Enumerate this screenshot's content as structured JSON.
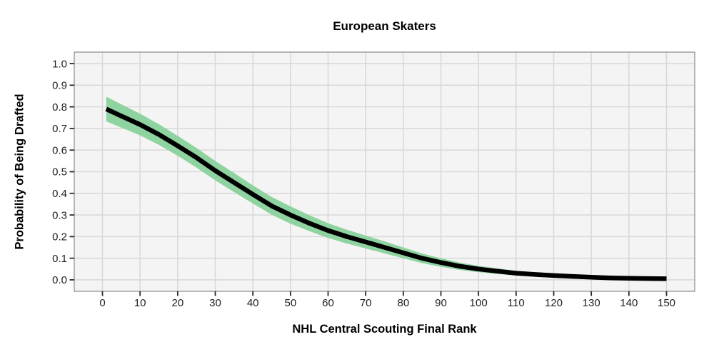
{
  "chart": {
    "title": "European Skaters",
    "xlabel": "NHL Central Scouting Final Rank",
    "ylabel": "Probability of Being Drafted"
  },
  "colors": {
    "background": "#ffffff",
    "panel_background": "#f4f4f4",
    "gridline": "#d9d9d9",
    "panel_border": "#919191",
    "tick_mark": "#2b2b2b",
    "tick_label": "#1f1f1f",
    "band_fill": "#8fd3a0",
    "line": "#000000",
    "title_text": "#000000"
  },
  "chart_data": {
    "type": "line",
    "title": "European Skaters",
    "xlabel": "NHL Central Scouting Final Rank",
    "ylabel": "Probability of Being Drafted",
    "xlim": [
      -7.5,
      157.5
    ],
    "ylim": [
      -0.053,
      1.053
    ],
    "grid": true,
    "legend": false,
    "x_ticks": {
      "values": [
        0,
        10,
        20,
        30,
        40,
        50,
        60,
        70,
        80,
        90,
        100,
        110,
        120,
        130,
        140,
        150
      ],
      "labels": [
        "0",
        "10",
        "20",
        "30",
        "40",
        "50",
        "60",
        "70",
        "80",
        "90",
        "100",
        "110",
        "120",
        "130",
        "140",
        "150"
      ]
    },
    "y_ticks": {
      "values": [
        0.0,
        0.1,
        0.2,
        0.3,
        0.4,
        0.5,
        0.6,
        0.7,
        0.8,
        0.9,
        1.0
      ],
      "labels": [
        "0.0",
        "0.1",
        "0.2",
        "0.3",
        "0.4",
        "0.5",
        "0.6",
        "0.7",
        "0.8",
        "0.9",
        "1.0"
      ]
    },
    "x": [
      1,
      5,
      10,
      15,
      20,
      25,
      30,
      35,
      40,
      45,
      50,
      55,
      60,
      65,
      70,
      75,
      80,
      85,
      90,
      95,
      100,
      105,
      110,
      115,
      120,
      125,
      130,
      135,
      140,
      145,
      150
    ],
    "series": [
      {
        "name": "fitted_probability",
        "type": "line",
        "color": "#000000",
        "values": [
          0.79,
          0.758,
          0.718,
          0.672,
          0.62,
          0.565,
          0.505,
          0.45,
          0.395,
          0.342,
          0.3,
          0.262,
          0.228,
          0.2,
          0.175,
          0.15,
          0.125,
          0.1,
          0.08,
          0.063,
          0.05,
          0.04,
          0.031,
          0.025,
          0.02,
          0.016,
          0.012,
          0.009,
          0.007,
          0.006,
          0.005
        ]
      },
      {
        "name": "confidence_band",
        "type": "area",
        "color": "#8fd3a0",
        "upper": [
          0.847,
          0.812,
          0.768,
          0.72,
          0.666,
          0.61,
          0.55,
          0.494,
          0.437,
          0.383,
          0.34,
          0.299,
          0.262,
          0.232,
          0.205,
          0.178,
          0.15,
          0.122,
          0.1,
          0.08,
          0.065,
          0.053,
          0.042,
          0.035,
          0.029,
          0.024,
          0.019,
          0.015,
          0.013,
          0.011,
          0.01
        ],
        "lower": [
          0.733,
          0.704,
          0.668,
          0.624,
          0.574,
          0.519,
          0.46,
          0.406,
          0.353,
          0.301,
          0.26,
          0.225,
          0.194,
          0.168,
          0.145,
          0.122,
          0.1,
          0.077,
          0.06,
          0.046,
          0.035,
          0.027,
          0.02,
          0.015,
          0.011,
          0.008,
          0.005,
          0.003,
          0.002,
          0.001,
          0.0
        ]
      }
    ]
  }
}
